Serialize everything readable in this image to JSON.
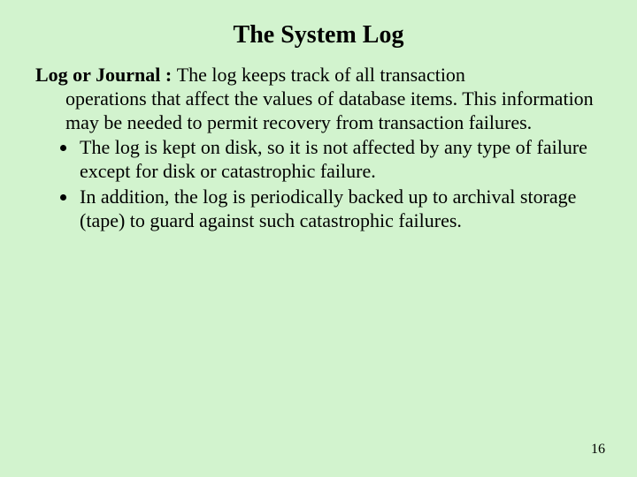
{
  "title": "The System Log",
  "lead_label": "Log or Journal : ",
  "lead_rest_line1": "The log keeps track of all transaction",
  "lead_cont": "operations that affect the values of database items. This information may be needed to permit recovery from transaction failures.",
  "bullets": [
    "The log is kept on disk, so it is not affected by any type of failure except for disk or catastrophic failure.",
    "In addition, the log is periodically backed up to archival storage (tape) to guard against such catastrophic failures."
  ],
  "page_number": "16",
  "colors": {
    "background": "#d2f3ce",
    "text": "#000000"
  },
  "typography": {
    "family": "Times New Roman",
    "title_size_pt": 21,
    "body_size_pt": 16.5,
    "pagenum_size_pt": 12
  }
}
